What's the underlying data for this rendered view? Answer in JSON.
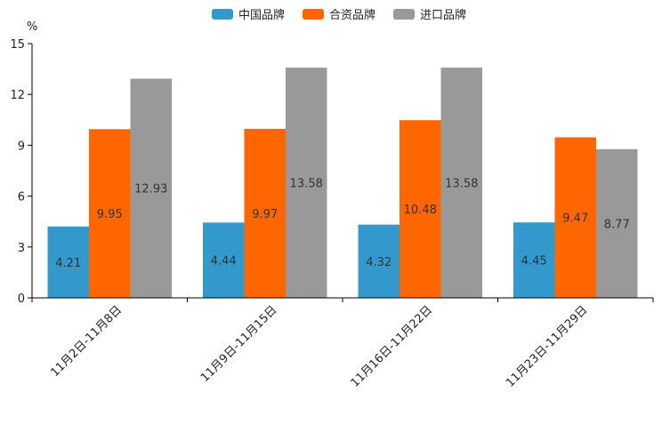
{
  "chart_data": {
    "type": "bar",
    "title": "",
    "ylabel": "%",
    "xlabel": "",
    "ylim": [
      0,
      15
    ],
    "yticks": [
      0,
      3,
      6,
      9,
      12,
      15
    ],
    "grid": false,
    "legend_position": "top-center",
    "categories": [
      "11月2日-11月8日",
      "11月9日-11月15日",
      "11月16日-11月22日",
      "11月23日-11月29日"
    ],
    "series": [
      {
        "name": "中国品牌",
        "color": "#3399CC",
        "values": [
          4.21,
          4.44,
          4.32,
          4.45
        ]
      },
      {
        "name": "合资品牌",
        "color": "#FF6600",
        "values": [
          9.95,
          9.97,
          10.48,
          9.47
        ]
      },
      {
        "name": "进口品牌",
        "color": "#999999",
        "values": [
          12.93,
          13.58,
          13.58,
          8.77
        ]
      }
    ]
  }
}
